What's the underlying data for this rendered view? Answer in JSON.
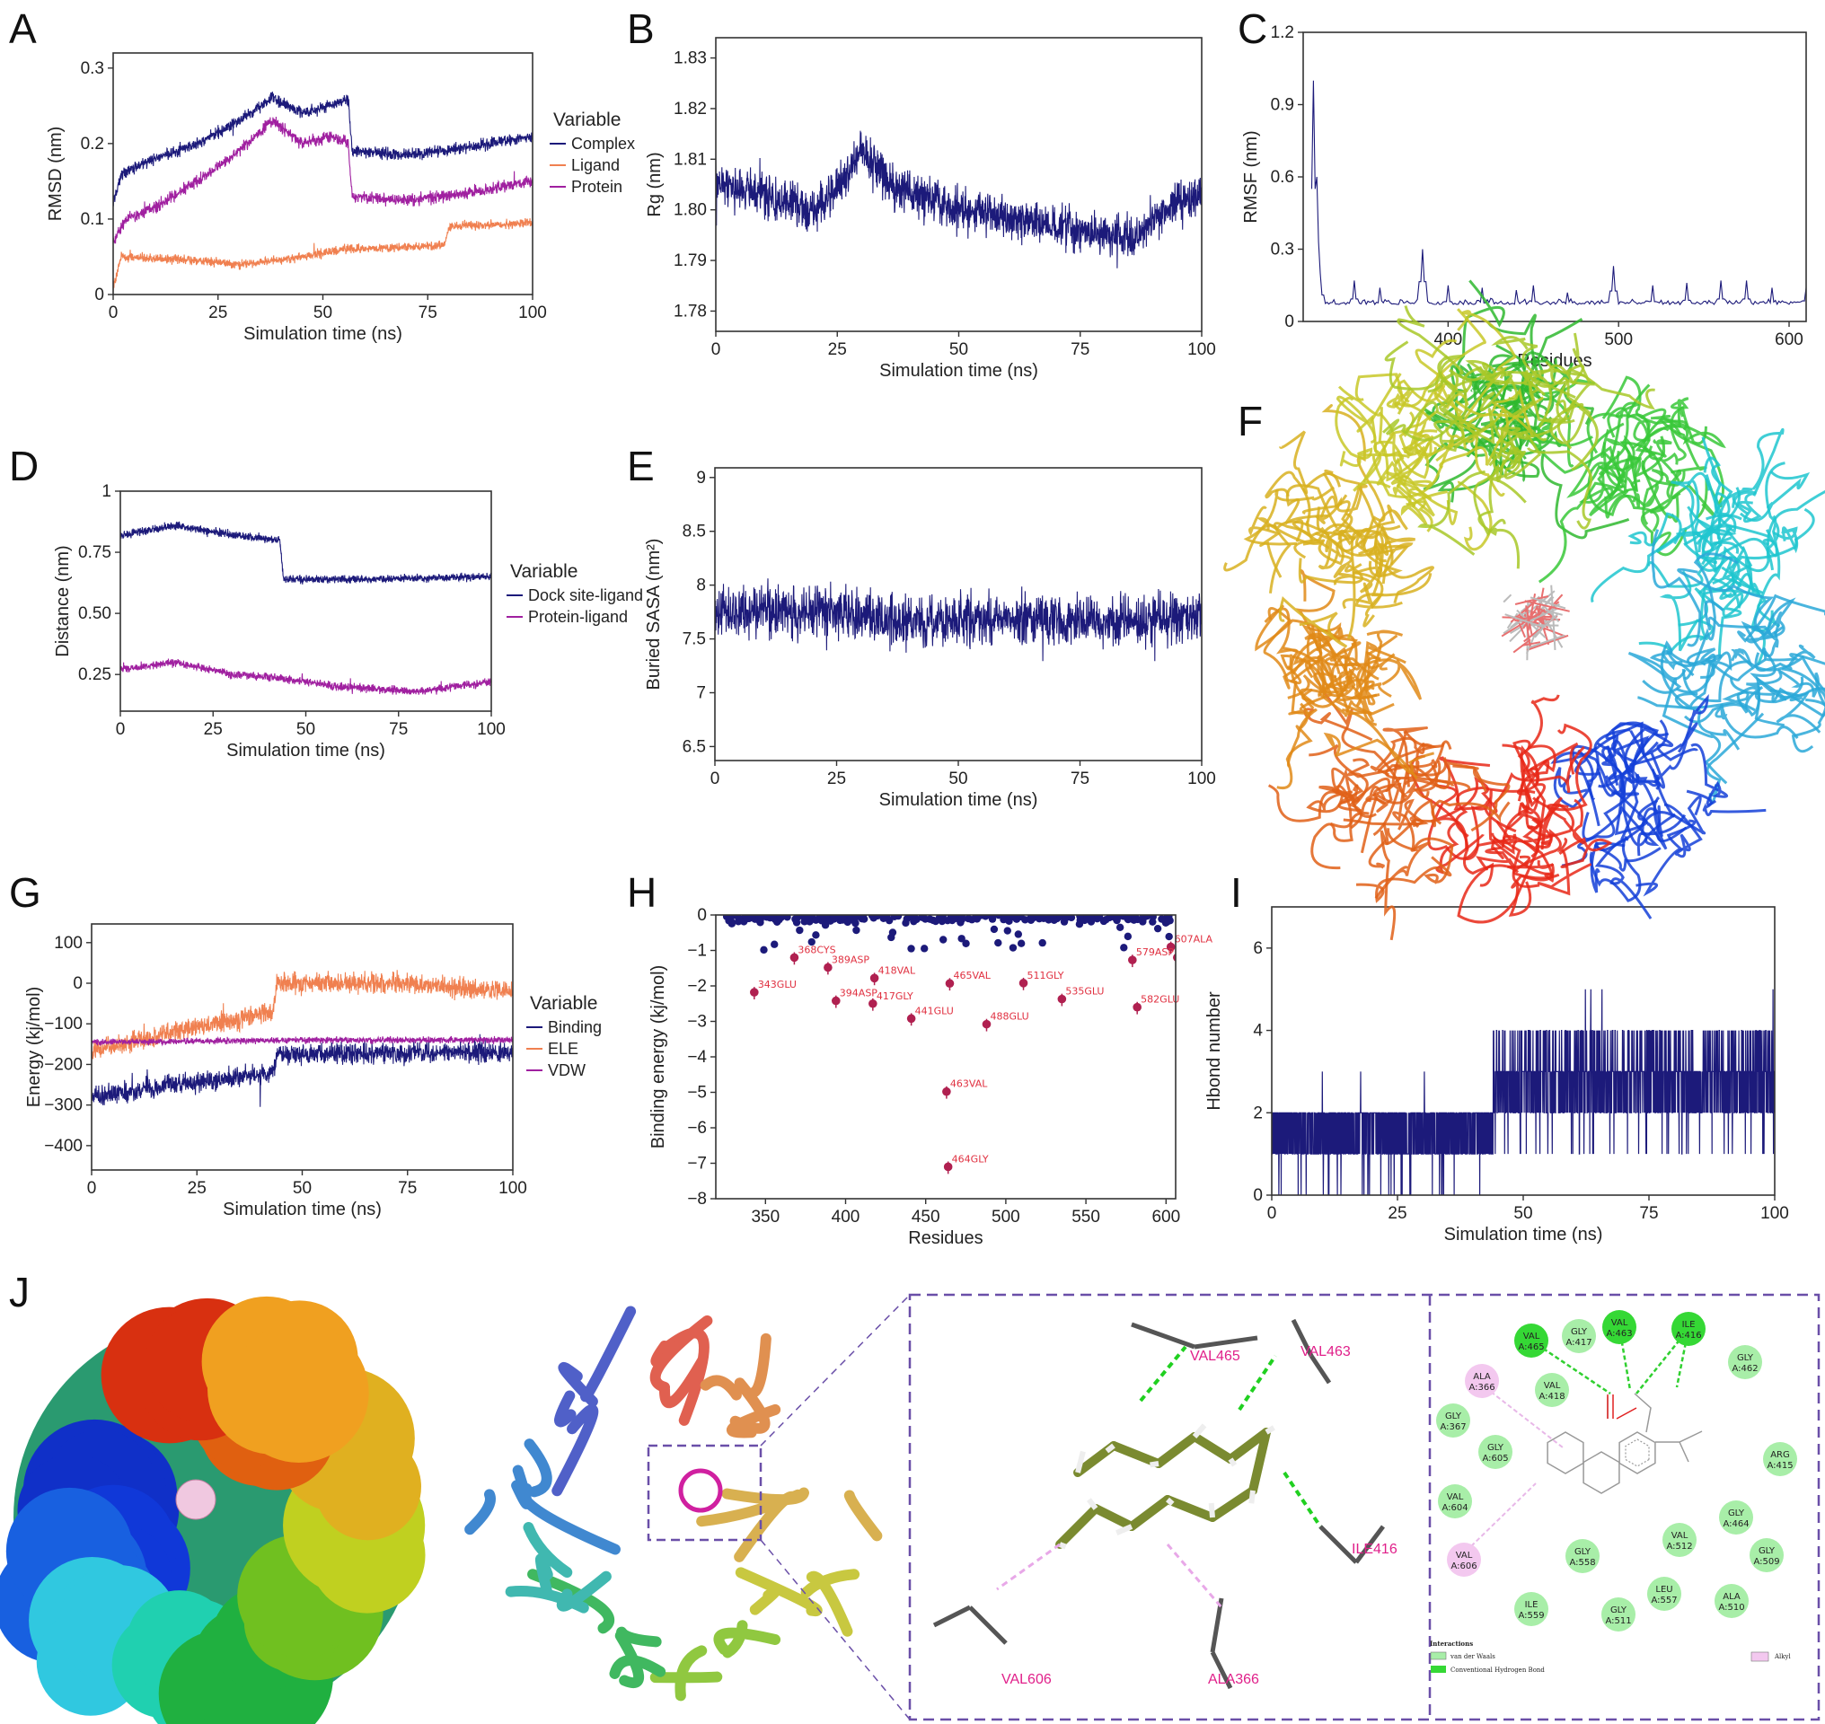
{
  "panels": {
    "A": "A",
    "B": "B",
    "C": "C",
    "D": "D",
    "E": "E",
    "F": "F",
    "G": "G",
    "H": "H",
    "I": "I",
    "J": "J"
  },
  "chart_data": [
    {
      "panel": "A",
      "type": "line",
      "xlabel": "Simulation time (ns)",
      "ylabel": "RMSD (nm)",
      "xlim": [
        0,
        100
      ],
      "ylim": [
        0,
        0.32
      ],
      "xticks": [
        0,
        25,
        50,
        75,
        100
      ],
      "xtick_labels": [
        "0",
        "25",
        "50",
        "75",
        "100"
      ],
      "yticks": [
        0,
        0.1,
        0.2,
        0.3
      ],
      "ytick_labels": [
        "0",
        "0.1",
        "0.2",
        "0.3"
      ],
      "legend_title": "Variable",
      "legend_position": "right",
      "series": [
        {
          "name": "Complex",
          "color": "#1c1a7a",
          "noise": 0.012,
          "points": [
            [
              0,
              0.12
            ],
            [
              2,
              0.16
            ],
            [
              10,
              0.18
            ],
            [
              20,
              0.2
            ],
            [
              30,
              0.23
            ],
            [
              38,
              0.26
            ],
            [
              45,
              0.24
            ],
            [
              52,
              0.25
            ],
            [
              56,
              0.26
            ],
            [
              57,
              0.19
            ],
            [
              70,
              0.185
            ],
            [
              85,
              0.195
            ],
            [
              100,
              0.21
            ]
          ]
        },
        {
          "name": "Ligand",
          "color": "#f08050",
          "noise": 0.009,
          "points": [
            [
              0,
              0.01
            ],
            [
              2,
              0.05
            ],
            [
              20,
              0.045
            ],
            [
              30,
              0.04
            ],
            [
              45,
              0.05
            ],
            [
              55,
              0.06
            ],
            [
              79,
              0.065
            ],
            [
              80,
              0.09
            ],
            [
              100,
              0.095
            ]
          ]
        },
        {
          "name": "Protein",
          "color": "#a020a0",
          "noise": 0.012,
          "points": [
            [
              0,
              0.07
            ],
            [
              3,
              0.1
            ],
            [
              10,
              0.115
            ],
            [
              20,
              0.15
            ],
            [
              30,
              0.19
            ],
            [
              38,
              0.23
            ],
            [
              45,
              0.2
            ],
            [
              52,
              0.21
            ],
            [
              56,
              0.2
            ],
            [
              57,
              0.13
            ],
            [
              70,
              0.125
            ],
            [
              85,
              0.135
            ],
            [
              100,
              0.15
            ]
          ]
        }
      ]
    },
    {
      "panel": "B",
      "type": "line",
      "xlabel": "Simulation time (ns)",
      "ylabel": "Rg (nm)",
      "xlim": [
        0,
        100
      ],
      "ylim": [
        1.776,
        1.834
      ],
      "xticks": [
        0,
        25,
        50,
        75,
        100
      ],
      "xtick_labels": [
        "0",
        "25",
        "50",
        "75",
        "100"
      ],
      "yticks": [
        1.78,
        1.79,
        1.8,
        1.81,
        1.82,
        1.83
      ],
      "ytick_labels": [
        "1.78",
        "1.79",
        "1.80",
        "1.81",
        "1.82",
        "1.83"
      ],
      "series": [
        {
          "color": "#1c1a7a",
          "noise": 0.0065,
          "points": [
            [
              0,
              1.805
            ],
            [
              10,
              1.803
            ],
            [
              20,
              1.8
            ],
            [
              27,
              1.806
            ],
            [
              30,
              1.812
            ],
            [
              36,
              1.805
            ],
            [
              50,
              1.8
            ],
            [
              62,
              1.798
            ],
            [
              75,
              1.796
            ],
            [
              86,
              1.794
            ],
            [
              92,
              1.8
            ],
            [
              100,
              1.803
            ]
          ]
        }
      ]
    },
    {
      "panel": "C",
      "type": "line",
      "xlabel": "Residues",
      "ylabel": "RMSF (nm)",
      "xlim": [
        315,
        610
      ],
      "ylim": [
        0,
        1.2
      ],
      "xticks": [
        400,
        500,
        600
      ],
      "xtick_labels": [
        "400",
        "500",
        "600"
      ],
      "yticks": [
        0,
        0.3,
        0.6,
        0.9,
        1.2
      ],
      "ytick_labels": [
        "0",
        "0.3",
        "0.6",
        "0.9",
        "1.2"
      ],
      "series": [
        {
          "color": "#1c1a7a",
          "noise": 0.03,
          "baseline": 0.07,
          "peaks": [
            [
              321,
              1.0
            ],
            [
              323,
              0.6
            ],
            [
              325,
              0.2
            ],
            [
              345,
              0.17
            ],
            [
              360,
              0.14
            ],
            [
              385,
              0.3
            ],
            [
              400,
              0.15
            ],
            [
              420,
              0.14
            ],
            [
              440,
              0.13
            ],
            [
              450,
              0.15
            ],
            [
              470,
              0.12
            ],
            [
              497,
              0.23
            ],
            [
              520,
              0.15
            ],
            [
              540,
              0.16
            ],
            [
              560,
              0.17
            ],
            [
              575,
              0.17
            ],
            [
              590,
              0.14
            ],
            [
              610,
              0.14
            ]
          ]
        }
      ]
    },
    {
      "panel": "D",
      "type": "line",
      "xlabel": "Simulation time (ns)",
      "ylabel": "Distance (nm)",
      "xlim": [
        0,
        100
      ],
      "ylim": [
        0.1,
        1.0
      ],
      "xticks": [
        0,
        25,
        50,
        75,
        100
      ],
      "xtick_labels": [
        "0",
        "25",
        "50",
        "75",
        "100"
      ],
      "yticks": [
        0.25,
        0.5,
        0.75,
        1
      ],
      "ytick_labels": [
        "0.25",
        "0.50",
        "0.75",
        "1"
      ],
      "legend_title": "Variable",
      "legend_position": "right",
      "series": [
        {
          "name": "Dock site-ligand",
          "color": "#1c1a7a",
          "noise": 0.025,
          "points": [
            [
              0,
              0.82
            ],
            [
              15,
              0.86
            ],
            [
              30,
              0.82
            ],
            [
              43,
              0.8
            ],
            [
              44,
              0.64
            ],
            [
              70,
              0.64
            ],
            [
              100,
              0.65
            ]
          ]
        },
        {
          "name": "Protein-ligand",
          "color": "#a020a0",
          "noise": 0.025,
          "points": [
            [
              0,
              0.27
            ],
            [
              15,
              0.3
            ],
            [
              30,
              0.25
            ],
            [
              40,
              0.24
            ],
            [
              60,
              0.2
            ],
            [
              80,
              0.18
            ],
            [
              100,
              0.22
            ]
          ]
        }
      ]
    },
    {
      "panel": "E",
      "type": "line",
      "xlabel": "Simulation time (ns)",
      "ylabel": "Buried SASA (nm²)",
      "xlim": [
        0,
        100
      ],
      "ylim": [
        6.37,
        9.09
      ],
      "xticks": [
        0,
        25,
        50,
        75,
        100
      ],
      "xtick_labels": [
        "0",
        "25",
        "50",
        "75",
        "100"
      ],
      "yticks": [
        6.5,
        7,
        7.5,
        8,
        8.5,
        9
      ],
      "ytick_labels": [
        "6.5",
        "7",
        "7.5",
        "8",
        "8.5",
        "9"
      ],
      "series": [
        {
          "color": "#1c1a7a",
          "noise": 0.36,
          "points": [
            [
              0,
              7.75
            ],
            [
              25,
              7.75
            ],
            [
              40,
              7.65
            ],
            [
              60,
              7.7
            ],
            [
              80,
              7.65
            ],
            [
              100,
              7.7
            ]
          ]
        }
      ]
    },
    {
      "panel": "G",
      "type": "line",
      "xlabel": "Simulation time (ns)",
      "ylabel": "Energy (kj/mol)",
      "xlim": [
        0,
        100
      ],
      "ylim": [
        -460,
        146
      ],
      "xticks": [
        0,
        25,
        50,
        75,
        100
      ],
      "xtick_labels": [
        "0",
        "25",
        "50",
        "75",
        "100"
      ],
      "yticks": [
        -400,
        -300,
        -200,
        -100,
        0,
        100
      ],
      "ytick_labels": [
        "−400",
        "−300",
        "−200",
        "−100",
        "0",
        "100"
      ],
      "legend_title": "Variable",
      "legend_position": "right",
      "series": [
        {
          "name": "ELE",
          "color": "#f08050",
          "noise": 38,
          "points": [
            [
              0,
              -170
            ],
            [
              20,
              -120
            ],
            [
              43,
              -70
            ],
            [
              44,
              0
            ],
            [
              70,
              0
            ],
            [
              100,
              -20
            ]
          ]
        },
        {
          "name": "Binding",
          "color": "#1c1a7a",
          "noise": 38,
          "points": [
            [
              0,
              -280
            ],
            [
              20,
              -250
            ],
            [
              43,
              -220
            ],
            [
              44,
              -175
            ],
            [
              100,
              -170
            ]
          ]
        },
        {
          "name": "VDW",
          "color": "#a020a0",
          "noise": 12,
          "points": [
            [
              0,
              -145
            ],
            [
              50,
              -140
            ],
            [
              100,
              -140
            ]
          ]
        }
      ]
    },
    {
      "panel": "H",
      "type": "scatter",
      "xlabel": "Residues",
      "ylabel": "Binding energy (kj/mol)",
      "xlim": [
        319,
        606
      ],
      "ylim": [
        -8,
        0
      ],
      "xticks": [
        350,
        400,
        450,
        500,
        550,
        600
      ],
      "xtick_labels": [
        "350",
        "400",
        "450",
        "500",
        "550",
        "600"
      ],
      "yticks": [
        0,
        -1,
        -2,
        -3,
        -4,
        -5,
        -6,
        -7,
        -8
      ],
      "ytick_labels": [
        "0",
        "−1",
        "−2",
        "−3",
        "−4",
        "−5",
        "−6",
        "−7",
        "−8"
      ],
      "background_color": "#1c1a7a",
      "highlight_color": "#b02050",
      "label_color": "#e03040",
      "labeled_points": [
        {
          "label": "343GLU",
          "x": 343,
          "y": -2.18
        },
        {
          "label": "368CYS",
          "x": 368,
          "y": -1.2
        },
        {
          "label": "389ASP",
          "x": 389,
          "y": -1.48
        },
        {
          "label": "394ASP",
          "x": 394,
          "y": -2.42
        },
        {
          "label": "418VAL",
          "x": 418,
          "y": -1.78
        },
        {
          "label": "417GLY",
          "x": 417,
          "y": -2.5
        },
        {
          "label": "441GLU",
          "x": 441,
          "y": -2.92
        },
        {
          "label": "463VAL",
          "x": 463,
          "y": -4.98
        },
        {
          "label": "464GLY",
          "x": 464,
          "y": -7.1
        },
        {
          "label": "465VAL",
          "x": 465,
          "y": -1.93
        },
        {
          "label": "488GLU",
          "x": 488,
          "y": -3.08
        },
        {
          "label": "511GLY",
          "x": 511,
          "y": -1.92
        },
        {
          "label": "535GLU",
          "x": 535,
          "y": -2.37
        },
        {
          "label": "579ASP",
          "x": 579,
          "y": -1.27
        },
        {
          "label": "582GLU",
          "x": 582,
          "y": -2.6
        },
        {
          "label": "607ALA",
          "x": 603,
          "y": -0.9
        },
        {
          "x": 607,
          "y": -1.2
        }
      ]
    },
    {
      "panel": "I",
      "type": "line",
      "xlabel": "Simulation time (ns)",
      "ylabel": "Hbond number",
      "xlim": [
        0,
        100
      ],
      "ylim": [
        0,
        7
      ],
      "xticks": [
        0,
        25,
        50,
        75,
        100
      ],
      "xtick_labels": [
        "0",
        "25",
        "50",
        "75",
        "100"
      ],
      "yticks": [
        0,
        2,
        4,
        6
      ],
      "ytick_labels": [
        "0",
        "2",
        "4",
        "6"
      ],
      "series": [
        {
          "color": "#1c1a7a",
          "segments": [
            {
              "from": 0,
              "to": 44,
              "min": 0,
              "max": 2,
              "typical": [
                1,
                2
              ]
            },
            {
              "from": 44,
              "to": 100,
              "min": 1,
              "max": 5,
              "typical": [
                2,
                3
              ]
            }
          ]
        }
      ]
    }
  ],
  "panel_j": {
    "labels_3d": [
      "VAL465",
      "VAL463",
      "ILE416",
      "VAL606",
      "ALA366"
    ],
    "residues_2d": [
      {
        "name": "VAL",
        "id": "A:465",
        "type": "hbond"
      },
      {
        "name": "GLY",
        "id": "A:417",
        "type": "vdw"
      },
      {
        "name": "VAL",
        "id": "A:463",
        "type": "hbond"
      },
      {
        "name": "ILE",
        "id": "A:416",
        "type": "hbond"
      },
      {
        "name": "GLY",
        "id": "A:462",
        "type": "vdw"
      },
      {
        "name": "ALA",
        "id": "A:366",
        "type": "alkyl"
      },
      {
        "name": "VAL",
        "id": "A:418",
        "type": "vdw"
      },
      {
        "name": "GLY",
        "id": "A:367",
        "type": "vdw"
      },
      {
        "name": "GLY",
        "id": "A:605",
        "type": "vdw"
      },
      {
        "name": "ARG",
        "id": "A:415",
        "type": "vdw"
      },
      {
        "name": "VAL",
        "id": "A:604",
        "type": "vdw"
      },
      {
        "name": "GLY",
        "id": "A:464",
        "type": "vdw"
      },
      {
        "name": "VAL",
        "id": "A:512",
        "type": "vdw"
      },
      {
        "name": "GLY",
        "id": "A:509",
        "type": "vdw"
      },
      {
        "name": "VAL",
        "id": "A:606",
        "type": "alkyl"
      },
      {
        "name": "GLY",
        "id": "A:558",
        "type": "vdw"
      },
      {
        "name": "LEU",
        "id": "A:557",
        "type": "vdw"
      },
      {
        "name": "ALA",
        "id": "A:510",
        "type": "vdw"
      },
      {
        "name": "ILE",
        "id": "A:559",
        "type": "vdw"
      },
      {
        "name": "GLY",
        "id": "A:511",
        "type": "vdw"
      }
    ],
    "legend": {
      "title": "Interactions",
      "vdw": "van der Waals",
      "hbond": "Conventional Hydrogen Bond",
      "alkyl": "Alkyl"
    },
    "colors": {
      "vdw": "#a8eea8",
      "hbond": "#35d835",
      "alkyl": "#f3c8ef",
      "frame": "#6a4fa8"
    }
  }
}
